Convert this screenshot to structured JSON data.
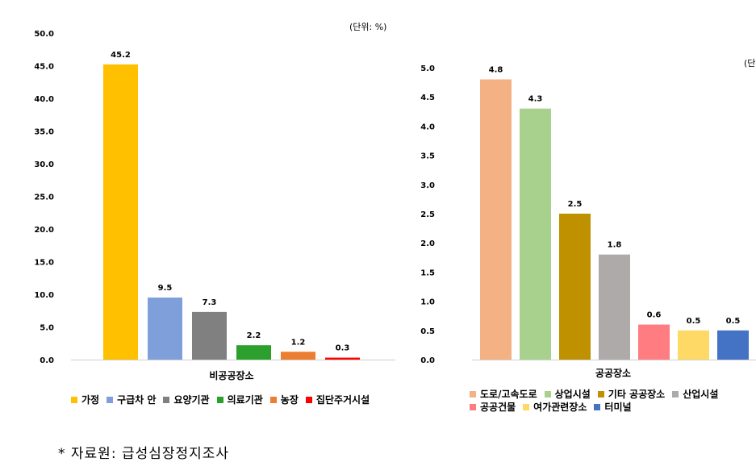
{
  "chart_data": [
    {
      "type": "bar",
      "unit_label": "(단위: %)",
      "xlabel": "비공공장소",
      "ylim": [
        0,
        50
      ],
      "yticks": [
        "0.0",
        "5.0",
        "10.0",
        "15.0",
        "20.0",
        "25.0",
        "30.0",
        "35.0",
        "40.0",
        "45.0",
        "50.0"
      ],
      "series": [
        {
          "name": "가정",
          "value": 45.2,
          "label": "45.2",
          "color": "#FFC000"
        },
        {
          "name": "구급차 안",
          "value": 9.5,
          "label": "9.5",
          "color": "#7F9FDB"
        },
        {
          "name": "요양기관",
          "value": 7.3,
          "label": "7.3",
          "color": "#808080"
        },
        {
          "name": "의료기관",
          "value": 2.2,
          "label": "2.2",
          "color": "#2CA02C"
        },
        {
          "name": "농장",
          "value": 1.2,
          "label": "1.2",
          "color": "#ED7D31"
        },
        {
          "name": "집단주거시설",
          "value": 0.3,
          "label": "0.3",
          "color": "#FF0000"
        }
      ]
    },
    {
      "type": "bar",
      "unit_label": "(단",
      "xlabel": "공공장소",
      "ylim": [
        0,
        5
      ],
      "yticks": [
        "0.0",
        "0.5",
        "1.0",
        "1.5",
        "2.0",
        "2.5",
        "3.0",
        "3.5",
        "4.0",
        "4.5",
        "5.0"
      ],
      "series": [
        {
          "name": "도로/고속도로",
          "value": 4.8,
          "label": "4.8",
          "color": "#F4B183"
        },
        {
          "name": "상업시설",
          "value": 4.3,
          "label": "4.3",
          "color": "#A9D18E"
        },
        {
          "name": "기타 공공장소",
          "value": 2.5,
          "label": "2.5",
          "color": "#BF9000"
        },
        {
          "name": "산업시설",
          "value": 1.8,
          "label": "1.8",
          "color": "#AEAAAA"
        },
        {
          "name": "공공건물",
          "value": 0.6,
          "label": "0.6",
          "color": "#FF7C80"
        },
        {
          "name": "여가관련장소",
          "value": 0.5,
          "label": "0.5",
          "color": "#FFD966"
        },
        {
          "name": "터미널",
          "value": 0.5,
          "label": "0.5",
          "color": "#4472C4"
        }
      ]
    }
  ],
  "source_note": "* 자료원: 급성심장정지조사"
}
